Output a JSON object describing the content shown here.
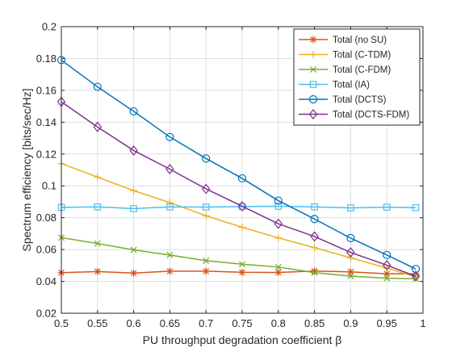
{
  "chart_data": {
    "type": "line",
    "xlabel": "PU throughput degradation coefficient β",
    "ylabel": "Spectrum efficiency [bits/sec/Hz]",
    "xlim": [
      0.5,
      1.0
    ],
    "ylim": [
      0.02,
      0.2
    ],
    "x_ticks": [
      0.5,
      0.55,
      0.6,
      0.65,
      0.7,
      0.75,
      0.8,
      0.85,
      0.9,
      0.95,
      1.0
    ],
    "x_tick_labels": [
      "0.5",
      "0.55",
      "0.6",
      "0.65",
      "0.7",
      "0.75",
      "0.8",
      "0.85",
      "0.9",
      "0.95",
      "1"
    ],
    "y_ticks": [
      0.02,
      0.04,
      0.06,
      0.08,
      0.1,
      0.12,
      0.14,
      0.16,
      0.18,
      0.2
    ],
    "y_tick_labels": [
      "0.02",
      "0.04",
      "0.06",
      "0.08",
      "0.1",
      "0.12",
      "0.14",
      "0.16",
      "0.18",
      "0.2"
    ],
    "grid": true,
    "legend_position": "top-right",
    "x": [
      0.5,
      0.55,
      0.6,
      0.65,
      0.7,
      0.75,
      0.8,
      0.85,
      0.9,
      0.95,
      0.99
    ],
    "series": [
      {
        "name": "Total (no SU)",
        "color": "#D95319",
        "marker": "star",
        "values": [
          0.0455,
          0.0462,
          0.0452,
          0.0464,
          0.0464,
          0.0457,
          0.0456,
          0.0465,
          0.046,
          0.0448,
          0.0448
        ]
      },
      {
        "name": "Total (C-TDM)",
        "color": "#EDB120",
        "marker": "plus",
        "values": [
          0.114,
          0.1055,
          0.097,
          0.0895,
          0.0812,
          0.074,
          0.0673,
          0.0612,
          0.0548,
          0.0484,
          0.0428
        ]
      },
      {
        "name": "Total (C-FDM)",
        "color": "#77AC30",
        "marker": "x",
        "values": [
          0.0675,
          0.0638,
          0.0598,
          0.0566,
          0.053,
          0.0508,
          0.049,
          0.0455,
          0.0433,
          0.042,
          0.0417
        ]
      },
      {
        "name": "Total (IA)",
        "color": "#4DBEEE",
        "marker": "square",
        "values": [
          0.0865,
          0.0868,
          0.0857,
          0.0868,
          0.0867,
          0.087,
          0.0872,
          0.0868,
          0.0862,
          0.0866,
          0.0863
        ]
      },
      {
        "name": "Total (DCTS)",
        "color": "#0072BD",
        "marker": "circle",
        "values": [
          0.179,
          0.1622,
          0.1468,
          0.1307,
          0.1172,
          0.1047,
          0.0907,
          0.0792,
          0.0672,
          0.0566,
          0.0478
        ]
      },
      {
        "name": "Total (DCTS-FDM)",
        "color": "#7E2F8E",
        "marker": "diamond",
        "values": [
          0.1528,
          0.137,
          0.1222,
          0.1105,
          0.0981,
          0.0872,
          0.0762,
          0.0682,
          0.0582,
          0.0502,
          0.0432
        ]
      }
    ]
  }
}
